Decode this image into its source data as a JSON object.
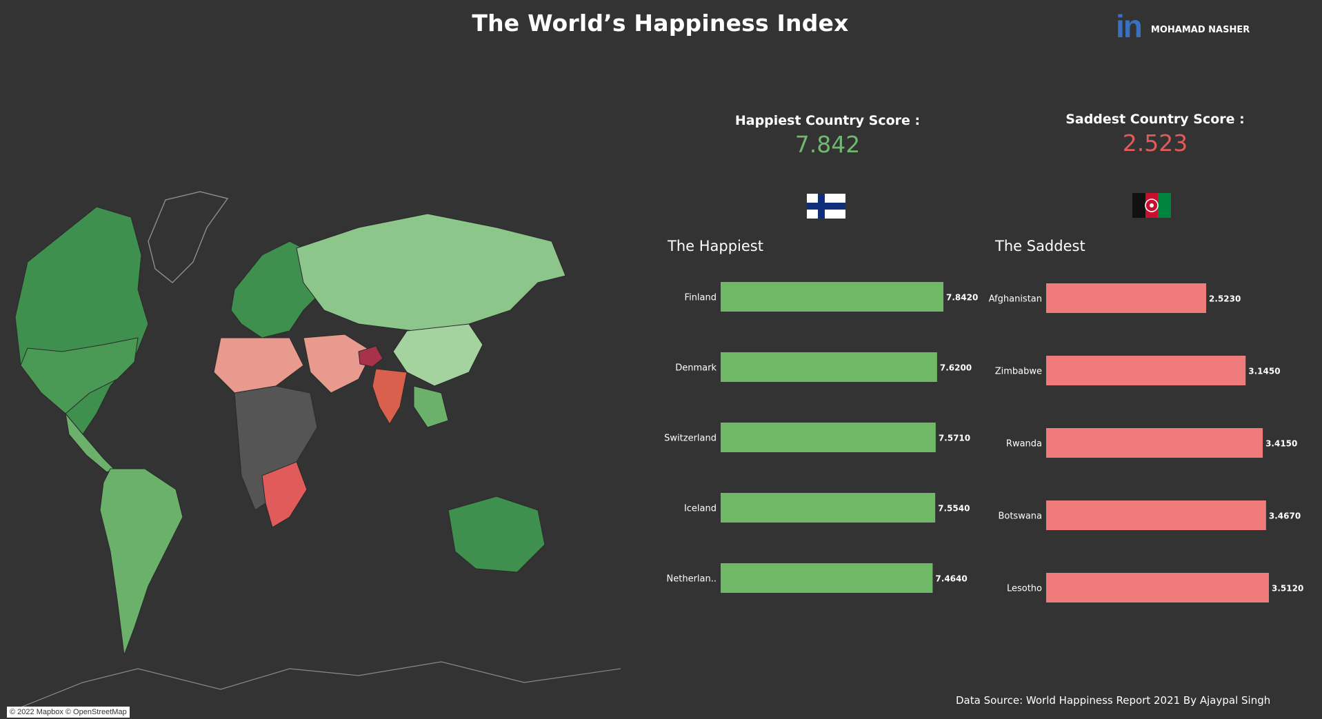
{
  "header": {
    "title": "The World’s Happiness Index"
  },
  "brand": {
    "icon": "linkedin-icon",
    "text": "in",
    "name": "MOHAMAD NASHER"
  },
  "kpis": {
    "happiest": {
      "label": "Happiest Country Score :",
      "value": "7.842",
      "color": "#6fb86f"
    },
    "saddest": {
      "label": "Saddest Country Score :",
      "value": "2.523",
      "color": "#e25b5b"
    }
  },
  "flags": {
    "happiest": "finland-flag",
    "saddest": "afghanistan-flag"
  },
  "sections": {
    "happiest": "The Happiest",
    "saddest": "The Saddest"
  },
  "chart_data": [
    {
      "type": "bar",
      "orientation": "horizontal",
      "title": "The Happiest",
      "categories": [
        "Finland",
        "Denmark",
        "Switzerland",
        "Iceland",
        "Netherlan.."
      ],
      "values": [
        7.842,
        7.62,
        7.571,
        7.554,
        7.464
      ],
      "value_labels": [
        "7.8420",
        "7.6200",
        "7.5710",
        "7.5540",
        "7.4640"
      ],
      "color": "#6fb866",
      "xlim": [
        0,
        7.842
      ]
    },
    {
      "type": "bar",
      "orientation": "horizontal",
      "title": "The Saddest",
      "categories": [
        "Afghanistan",
        "Zimbabwe",
        "Rwanda",
        "Botswana",
        "Lesotho"
      ],
      "values": [
        2.523,
        3.145,
        3.415,
        3.467,
        3.512
      ],
      "value_labels": [
        "2.5230",
        "3.1450",
        "3.4150",
        "3.4670",
        "3.5120"
      ],
      "color": "#f07b7b",
      "xlim": [
        0,
        3.512
      ]
    }
  ],
  "map": {
    "name": "world-choropleth-map",
    "attribution": "© 2022 Mapbox © OpenStreetMap",
    "colors": {
      "high": "#3f8f4f",
      "mid": "#8cc68a",
      "low": "#e89a8e",
      "lowest": "#c0392b",
      "nodata": "#555555"
    }
  },
  "footer": {
    "source": "Data Source: World Happiness Report 2021 By Ajaypal Singh"
  }
}
